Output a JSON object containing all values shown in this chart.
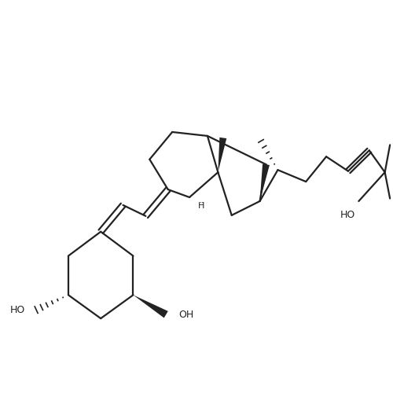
{
  "bg": "#ffffff",
  "lc": "#222222",
  "lw": 1.6,
  "figsize": [
    5.0,
    5.0
  ],
  "dpi": 100,
  "xlim": [
    0,
    10
  ],
  "ylim": [
    0,
    10
  ]
}
